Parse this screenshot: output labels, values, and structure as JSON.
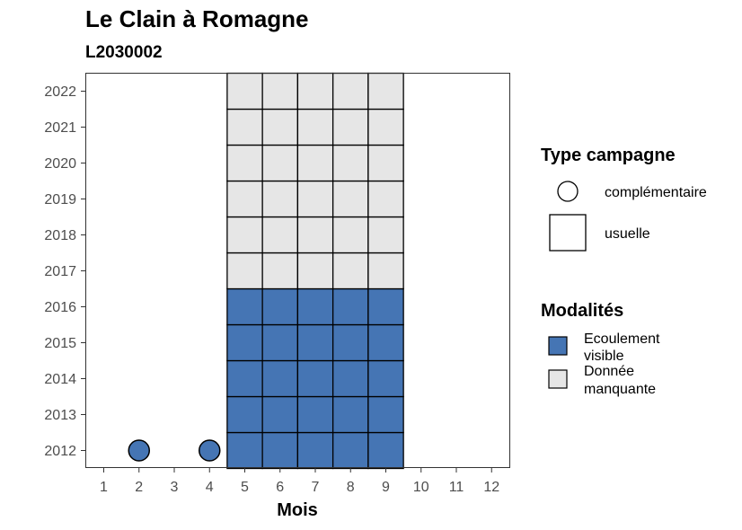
{
  "chart_data": {
    "type": "heatmap",
    "title": "Le Clain à Romagne",
    "subtitle": "L2030002",
    "xlabel": "Mois",
    "ylabel": "",
    "x_ticks": [
      "1",
      "2",
      "3",
      "4",
      "5",
      "6",
      "7",
      "8",
      "9",
      "10",
      "11",
      "12"
    ],
    "y_ticks": [
      "2012",
      "2013",
      "2014",
      "2015",
      "2016",
      "2017",
      "2018",
      "2019",
      "2020",
      "2021",
      "2022"
    ],
    "xlim": [
      0.5,
      12.5
    ],
    "ylim": [
      2012,
      2022
    ],
    "grid": false,
    "legend_position": "right",
    "tiles": [
      {
        "month": 5,
        "year": 2012,
        "modalite": "Ecoulement visible"
      },
      {
        "month": 6,
        "year": 2012,
        "modalite": "Ecoulement visible"
      },
      {
        "month": 7,
        "year": 2012,
        "modalite": "Ecoulement visible"
      },
      {
        "month": 8,
        "year": 2012,
        "modalite": "Ecoulement visible"
      },
      {
        "month": 9,
        "year": 2012,
        "modalite": "Ecoulement visible"
      },
      {
        "month": 5,
        "year": 2013,
        "modalite": "Ecoulement visible"
      },
      {
        "month": 6,
        "year": 2013,
        "modalite": "Ecoulement visible"
      },
      {
        "month": 7,
        "year": 2013,
        "modalite": "Ecoulement visible"
      },
      {
        "month": 8,
        "year": 2013,
        "modalite": "Ecoulement visible"
      },
      {
        "month": 9,
        "year": 2013,
        "modalite": "Ecoulement visible"
      },
      {
        "month": 5,
        "year": 2014,
        "modalite": "Ecoulement visible"
      },
      {
        "month": 6,
        "year": 2014,
        "modalite": "Ecoulement visible"
      },
      {
        "month": 7,
        "year": 2014,
        "modalite": "Ecoulement visible"
      },
      {
        "month": 8,
        "year": 2014,
        "modalite": "Ecoulement visible"
      },
      {
        "month": 9,
        "year": 2014,
        "modalite": "Ecoulement visible"
      },
      {
        "month": 5,
        "year": 2015,
        "modalite": "Ecoulement visible"
      },
      {
        "month": 6,
        "year": 2015,
        "modalite": "Ecoulement visible"
      },
      {
        "month": 7,
        "year": 2015,
        "modalite": "Ecoulement visible"
      },
      {
        "month": 8,
        "year": 2015,
        "modalite": "Ecoulement visible"
      },
      {
        "month": 9,
        "year": 2015,
        "modalite": "Ecoulement visible"
      },
      {
        "month": 5,
        "year": 2016,
        "modalite": "Ecoulement visible"
      },
      {
        "month": 6,
        "year": 2016,
        "modalite": "Ecoulement visible"
      },
      {
        "month": 7,
        "year": 2016,
        "modalite": "Ecoulement visible"
      },
      {
        "month": 8,
        "year": 2016,
        "modalite": "Ecoulement visible"
      },
      {
        "month": 9,
        "year": 2016,
        "modalite": "Ecoulement visible"
      },
      {
        "month": 5,
        "year": 2017,
        "modalite": "Donnée manquante"
      },
      {
        "month": 6,
        "year": 2017,
        "modalite": "Donnée manquante"
      },
      {
        "month": 7,
        "year": 2017,
        "modalite": "Donnée manquante"
      },
      {
        "month": 8,
        "year": 2017,
        "modalite": "Donnée manquante"
      },
      {
        "month": 9,
        "year": 2017,
        "modalite": "Donnée manquante"
      },
      {
        "month": 5,
        "year": 2018,
        "modalite": "Donnée manquante"
      },
      {
        "month": 6,
        "year": 2018,
        "modalite": "Donnée manquante"
      },
      {
        "month": 7,
        "year": 2018,
        "modalite": "Donnée manquante"
      },
      {
        "month": 8,
        "year": 2018,
        "modalite": "Donnée manquante"
      },
      {
        "month": 9,
        "year": 2018,
        "modalite": "Donnée manquante"
      },
      {
        "month": 5,
        "year": 2019,
        "modalite": "Donnée manquante"
      },
      {
        "month": 6,
        "year": 2019,
        "modalite": "Donnée manquante"
      },
      {
        "month": 7,
        "year": 2019,
        "modalite": "Donnée manquante"
      },
      {
        "month": 8,
        "year": 2019,
        "modalite": "Donnée manquante"
      },
      {
        "month": 9,
        "year": 2019,
        "modalite": "Donnée manquante"
      },
      {
        "month": 5,
        "year": 2020,
        "modalite": "Donnée manquante"
      },
      {
        "month": 6,
        "year": 2020,
        "modalite": "Donnée manquante"
      },
      {
        "month": 7,
        "year": 2020,
        "modalite": "Donnée manquante"
      },
      {
        "month": 8,
        "year": 2020,
        "modalite": "Donnée manquante"
      },
      {
        "month": 9,
        "year": 2020,
        "modalite": "Donnée manquante"
      },
      {
        "month": 5,
        "year": 2021,
        "modalite": "Donnée manquante"
      },
      {
        "month": 6,
        "year": 2021,
        "modalite": "Donnée manquante"
      },
      {
        "month": 7,
        "year": 2021,
        "modalite": "Donnée manquante"
      },
      {
        "month": 8,
        "year": 2021,
        "modalite": "Donnée manquante"
      },
      {
        "month": 9,
        "year": 2021,
        "modalite": "Donnée manquante"
      },
      {
        "month": 5,
        "year": 2022,
        "modalite": "Donnée manquante"
      },
      {
        "month": 6,
        "year": 2022,
        "modalite": "Donnée manquante"
      },
      {
        "month": 7,
        "year": 2022,
        "modalite": "Donnée manquante"
      },
      {
        "month": 8,
        "year": 2022,
        "modalite": "Donnée manquante"
      },
      {
        "month": 9,
        "year": 2022,
        "modalite": "Donnée manquante"
      }
    ],
    "points": [
      {
        "month": 2,
        "year": 2012,
        "modalite": "Ecoulement visible",
        "type": "complémentaire"
      },
      {
        "month": 4,
        "year": 2012,
        "modalite": "Ecoulement visible",
        "type": "complémentaire"
      }
    ],
    "legend_type": {
      "title": "Type campagne",
      "items": [
        {
          "label": "complémentaire",
          "shape": "circle"
        },
        {
          "label": "usuelle",
          "shape": "square"
        }
      ]
    },
    "legend_modalites": {
      "title": "Modalités",
      "items": [
        {
          "label_lines": [
            "Ecoulement",
            "visible"
          ],
          "color": "#4575b4"
        },
        {
          "label_lines": [
            "Donnée",
            "manquante"
          ],
          "color": "#e6e6e6"
        }
      ]
    }
  }
}
